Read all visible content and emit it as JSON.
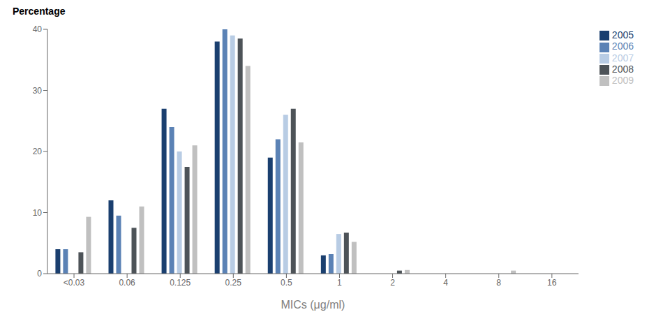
{
  "chart_data": {
    "type": "bar",
    "categories": [
      "<0.03",
      "0.06",
      "0.125",
      "0.25",
      "0.5",
      "1",
      "2",
      "4",
      "8",
      "16"
    ],
    "series": [
      {
        "name": "2005",
        "color": "#1a3f6f",
        "values": [
          4.0,
          12.0,
          27.0,
          38.0,
          19.0,
          3.0,
          0.0,
          0.0,
          0.0,
          0.0
        ]
      },
      {
        "name": "2006",
        "color": "#5b82b5",
        "values": [
          4.0,
          9.5,
          24.0,
          40.0,
          22.0,
          3.2,
          0.0,
          0.0,
          0.0,
          0.0
        ]
      },
      {
        "name": "2007",
        "color": "#b8cce4",
        "values": [
          0.0,
          0.0,
          20.0,
          39.0,
          26.0,
          6.5,
          0.0,
          0.0,
          0.0,
          0.0
        ]
      },
      {
        "name": "2008",
        "color": "#4d5358",
        "values": [
          3.5,
          7.5,
          17.5,
          38.5,
          27.0,
          6.7,
          0.5,
          0.0,
          0.0,
          0.0
        ]
      },
      {
        "name": "2009",
        "color": "#c0c0c0",
        "values": [
          9.3,
          11.0,
          21.0,
          34.0,
          21.5,
          5.2,
          0.6,
          0.0,
          0.5,
          0.0
        ]
      }
    ],
    "xlabel": "MICs (μg/ml)",
    "ylabel": "Percentage",
    "ylim": [
      0,
      40
    ],
    "yticks": [
      0,
      10,
      20,
      30,
      40
    ],
    "grid": false,
    "legend": "right"
  }
}
